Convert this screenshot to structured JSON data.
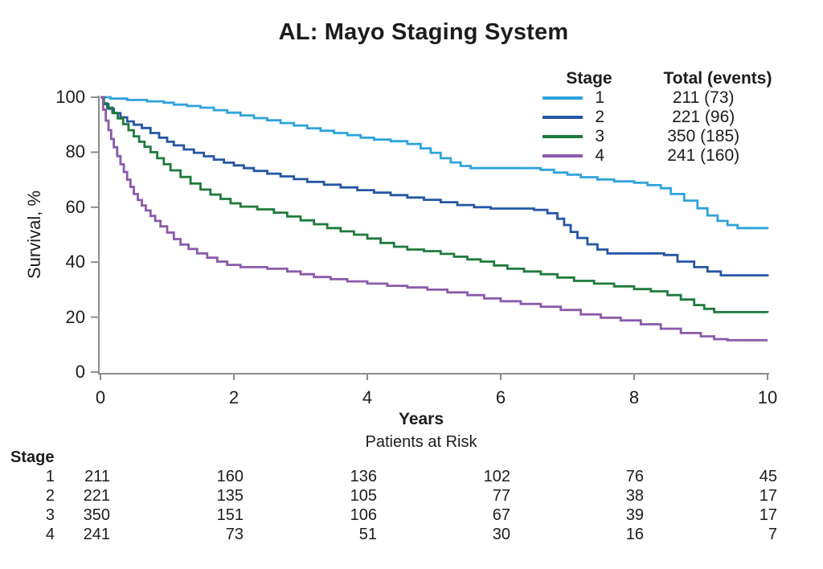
{
  "title": "AL: Mayo Staging System",
  "colors": {
    "stage1": "#2EA3DC",
    "stage2": "#2456A5",
    "stage3": "#1E7A3C",
    "stage4": "#8B5AAB",
    "axis": "#8c8c8c",
    "text": "#1c1c1c"
  },
  "legend": {
    "stage_header": "Stage",
    "total_header": "Total (events)",
    "rows": [
      {
        "stage": "1",
        "total": "211 (73)",
        "color": "#2EA3DC"
      },
      {
        "stage": "2",
        "total": "221 (96)",
        "color": "#2456A5"
      },
      {
        "stage": "3",
        "total": "350 (185)",
        "color": "#1E7A3C"
      },
      {
        "stage": "4",
        "total": "241 (160)",
        "color": "#8B5AAB"
      }
    ]
  },
  "axes": {
    "y_label": "Survival, %",
    "x_label": "Years",
    "y_tick_labels": [
      "100",
      "80",
      "60",
      "40",
      "20",
      "0"
    ],
    "x_tick_labels": [
      "0",
      "2",
      "4",
      "6",
      "8",
      "10"
    ]
  },
  "risk_table": {
    "title": "Patients at Risk",
    "stage_header": "Stage",
    "rows": [
      {
        "stage": "1",
        "counts": [
          "211",
          "160",
          "136",
          "102",
          "76",
          "45"
        ]
      },
      {
        "stage": "2",
        "counts": [
          "221",
          "135",
          "105",
          "77",
          "38",
          "17"
        ]
      },
      {
        "stage": "3",
        "counts": [
          "350",
          "151",
          "106",
          "67",
          "39",
          "17"
        ]
      },
      {
        "stage": "4",
        "counts": [
          "241",
          "73",
          "51",
          "30",
          "16",
          "7"
        ]
      }
    ]
  },
  "chart_data": {
    "type": "line",
    "subtype": "kaplan-meier-step",
    "title": "AL: Mayo Staging System",
    "xlabel": "Years",
    "ylabel": "Survival, %",
    "xlim": [
      0,
      10
    ],
    "ylim": [
      0,
      100
    ],
    "x_ticks": [
      0,
      2,
      4,
      6,
      8,
      10
    ],
    "y_ticks": [
      100,
      80,
      60,
      40,
      20,
      0
    ],
    "grid": false,
    "legend_position": "top-right",
    "series": [
      {
        "name": "Stage 1",
        "total": 211,
        "events": 73,
        "color": "#2EA3DC",
        "points": [
          [
            0,
            100
          ],
          [
            0.15,
            99.5
          ],
          [
            0.4,
            99
          ],
          [
            0.7,
            98.5
          ],
          [
            0.95,
            98
          ],
          [
            1.1,
            97.3
          ],
          [
            1.3,
            96.8
          ],
          [
            1.5,
            96.2
          ],
          [
            1.7,
            95.3
          ],
          [
            1.9,
            94.4
          ],
          [
            2.1,
            93.4
          ],
          [
            2.3,
            92.4
          ],
          [
            2.5,
            91.6
          ],
          [
            2.7,
            90.6
          ],
          [
            2.9,
            89.7
          ],
          [
            3.1,
            88.7
          ],
          [
            3.3,
            87.8
          ],
          [
            3.5,
            87
          ],
          [
            3.7,
            86.2
          ],
          [
            3.9,
            85.3
          ],
          [
            4.1,
            84.6
          ],
          [
            4.35,
            84
          ],
          [
            4.6,
            83
          ],
          [
            4.8,
            81.4
          ],
          [
            4.95,
            79.8
          ],
          [
            5.1,
            77.8
          ],
          [
            5.25,
            76.3
          ],
          [
            5.4,
            75
          ],
          [
            5.55,
            74.2
          ],
          [
            6.6,
            73.6
          ],
          [
            6.8,
            72.6
          ],
          [
            7.0,
            71.8
          ],
          [
            7.2,
            70.9
          ],
          [
            7.45,
            70.1
          ],
          [
            7.7,
            69.4
          ],
          [
            8.0,
            68.9
          ],
          [
            8.2,
            68
          ],
          [
            8.4,
            66.9
          ],
          [
            8.55,
            64.8
          ],
          [
            8.75,
            62.4
          ],
          [
            8.95,
            59.6
          ],
          [
            9.1,
            57
          ],
          [
            9.25,
            55
          ],
          [
            9.4,
            53.5
          ],
          [
            9.55,
            52.4
          ],
          [
            10,
            52.2
          ]
        ]
      },
      {
        "name": "Stage 2",
        "total": 221,
        "events": 96,
        "color": "#2456A5",
        "points": [
          [
            0,
            100
          ],
          [
            0.05,
            97.5
          ],
          [
            0.12,
            95.8
          ],
          [
            0.2,
            94.2
          ],
          [
            0.3,
            92.7
          ],
          [
            0.4,
            91.2
          ],
          [
            0.5,
            90
          ],
          [
            0.62,
            88.8
          ],
          [
            0.75,
            87
          ],
          [
            0.88,
            85.3
          ],
          [
            1.0,
            83.8
          ],
          [
            1.1,
            82.5
          ],
          [
            1.25,
            81
          ],
          [
            1.4,
            79.8
          ],
          [
            1.55,
            78.5
          ],
          [
            1.7,
            77.3
          ],
          [
            1.85,
            76.2
          ],
          [
            2.0,
            75.2
          ],
          [
            2.15,
            74.2
          ],
          [
            2.3,
            73.2
          ],
          [
            2.5,
            72.2
          ],
          [
            2.7,
            71.2
          ],
          [
            2.9,
            70.2
          ],
          [
            3.1,
            69.2
          ],
          [
            3.35,
            68.2
          ],
          [
            3.6,
            67.2
          ],
          [
            3.85,
            66.2
          ],
          [
            4.1,
            65.3
          ],
          [
            4.35,
            64.4
          ],
          [
            4.6,
            63.5
          ],
          [
            4.85,
            62.7
          ],
          [
            5.1,
            61.8
          ],
          [
            5.35,
            60.8
          ],
          [
            5.6,
            60
          ],
          [
            5.85,
            59.5
          ],
          [
            6.5,
            59
          ],
          [
            6.7,
            57.8
          ],
          [
            6.85,
            55.8
          ],
          [
            6.95,
            53.5
          ],
          [
            7.05,
            51
          ],
          [
            7.15,
            48.8
          ],
          [
            7.3,
            46.5
          ],
          [
            7.45,
            44.6
          ],
          [
            7.6,
            43.2
          ],
          [
            8.45,
            42.6
          ],
          [
            8.65,
            40.2
          ],
          [
            8.9,
            38.2
          ],
          [
            9.1,
            36.6
          ],
          [
            9.3,
            35.2
          ],
          [
            10,
            34.8
          ]
        ]
      },
      {
        "name": "Stage 3",
        "total": 350,
        "events": 185,
        "color": "#1E7A3C",
        "points": [
          [
            0,
            100
          ],
          [
            0.05,
            97.8
          ],
          [
            0.1,
            96.2
          ],
          [
            0.18,
            94.3
          ],
          [
            0.26,
            92.3
          ],
          [
            0.34,
            90.2
          ],
          [
            0.42,
            88
          ],
          [
            0.5,
            85.8
          ],
          [
            0.58,
            83.8
          ],
          [
            0.66,
            82
          ],
          [
            0.75,
            80
          ],
          [
            0.85,
            77.8
          ],
          [
            0.95,
            75.6
          ],
          [
            1.05,
            73.4
          ],
          [
            1.2,
            71
          ],
          [
            1.35,
            68.6
          ],
          [
            1.5,
            66.4
          ],
          [
            1.65,
            64.6
          ],
          [
            1.8,
            63
          ],
          [
            1.95,
            61.4
          ],
          [
            2.1,
            60.2
          ],
          [
            2.35,
            59.2
          ],
          [
            2.6,
            58
          ],
          [
            2.8,
            56.6
          ],
          [
            3.0,
            55.2
          ],
          [
            3.2,
            53.8
          ],
          [
            3.4,
            52.4
          ],
          [
            3.6,
            51.2
          ],
          [
            3.8,
            50
          ],
          [
            4.0,
            48.6
          ],
          [
            4.2,
            47
          ],
          [
            4.4,
            45.6
          ],
          [
            4.6,
            44.6
          ],
          [
            4.85,
            44
          ],
          [
            5.1,
            43
          ],
          [
            5.3,
            42
          ],
          [
            5.5,
            41
          ],
          [
            5.7,
            40.2
          ],
          [
            5.9,
            38.8
          ],
          [
            6.1,
            37.6
          ],
          [
            6.35,
            36.6
          ],
          [
            6.6,
            35.6
          ],
          [
            6.85,
            34.4
          ],
          [
            7.1,
            33.2
          ],
          [
            7.4,
            32.2
          ],
          [
            7.7,
            31.2
          ],
          [
            8.0,
            30.2
          ],
          [
            8.25,
            29.4
          ],
          [
            8.5,
            28
          ],
          [
            8.7,
            26.4
          ],
          [
            8.9,
            24.4
          ],
          [
            9.05,
            23
          ],
          [
            9.2,
            21.8
          ],
          [
            10,
            21.6
          ]
        ]
      },
      {
        "name": "Stage 4",
        "total": 241,
        "events": 160,
        "color": "#8B5AAB",
        "points": [
          [
            0,
            100
          ],
          [
            0.04,
            95.5
          ],
          [
            0.08,
            91.5
          ],
          [
            0.12,
            88
          ],
          [
            0.16,
            84.8
          ],
          [
            0.2,
            81.8
          ],
          [
            0.25,
            78.6
          ],
          [
            0.3,
            75.6
          ],
          [
            0.35,
            72.8
          ],
          [
            0.4,
            70
          ],
          [
            0.45,
            67.4
          ],
          [
            0.5,
            64.8
          ],
          [
            0.56,
            62.6
          ],
          [
            0.62,
            60.6
          ],
          [
            0.68,
            58.8
          ],
          [
            0.75,
            56.8
          ],
          [
            0.82,
            55
          ],
          [
            0.9,
            53
          ],
          [
            1.0,
            50.8
          ],
          [
            1.1,
            48.4
          ],
          [
            1.2,
            46.4
          ],
          [
            1.32,
            44.8
          ],
          [
            1.45,
            43.2
          ],
          [
            1.6,
            41.6
          ],
          [
            1.75,
            40.2
          ],
          [
            1.9,
            39
          ],
          [
            2.1,
            38.2
          ],
          [
            2.5,
            37.6
          ],
          [
            2.8,
            36.6
          ],
          [
            3.0,
            35.6
          ],
          [
            3.2,
            34.6
          ],
          [
            3.45,
            33.8
          ],
          [
            3.7,
            33
          ],
          [
            4.0,
            32.2
          ],
          [
            4.3,
            31.4
          ],
          [
            4.6,
            30.8
          ],
          [
            4.9,
            30
          ],
          [
            5.2,
            29
          ],
          [
            5.5,
            28
          ],
          [
            5.75,
            26.8
          ],
          [
            6.0,
            25.8
          ],
          [
            6.3,
            24.8
          ],
          [
            6.6,
            23.8
          ],
          [
            6.9,
            22.6
          ],
          [
            7.2,
            21
          ],
          [
            7.5,
            19.8
          ],
          [
            7.8,
            18.8
          ],
          [
            8.1,
            17.4
          ],
          [
            8.4,
            15.8
          ],
          [
            8.7,
            14.2
          ],
          [
            9.0,
            13
          ],
          [
            9.2,
            12
          ],
          [
            9.4,
            11.6
          ],
          [
            10,
            11.6
          ]
        ]
      }
    ]
  }
}
